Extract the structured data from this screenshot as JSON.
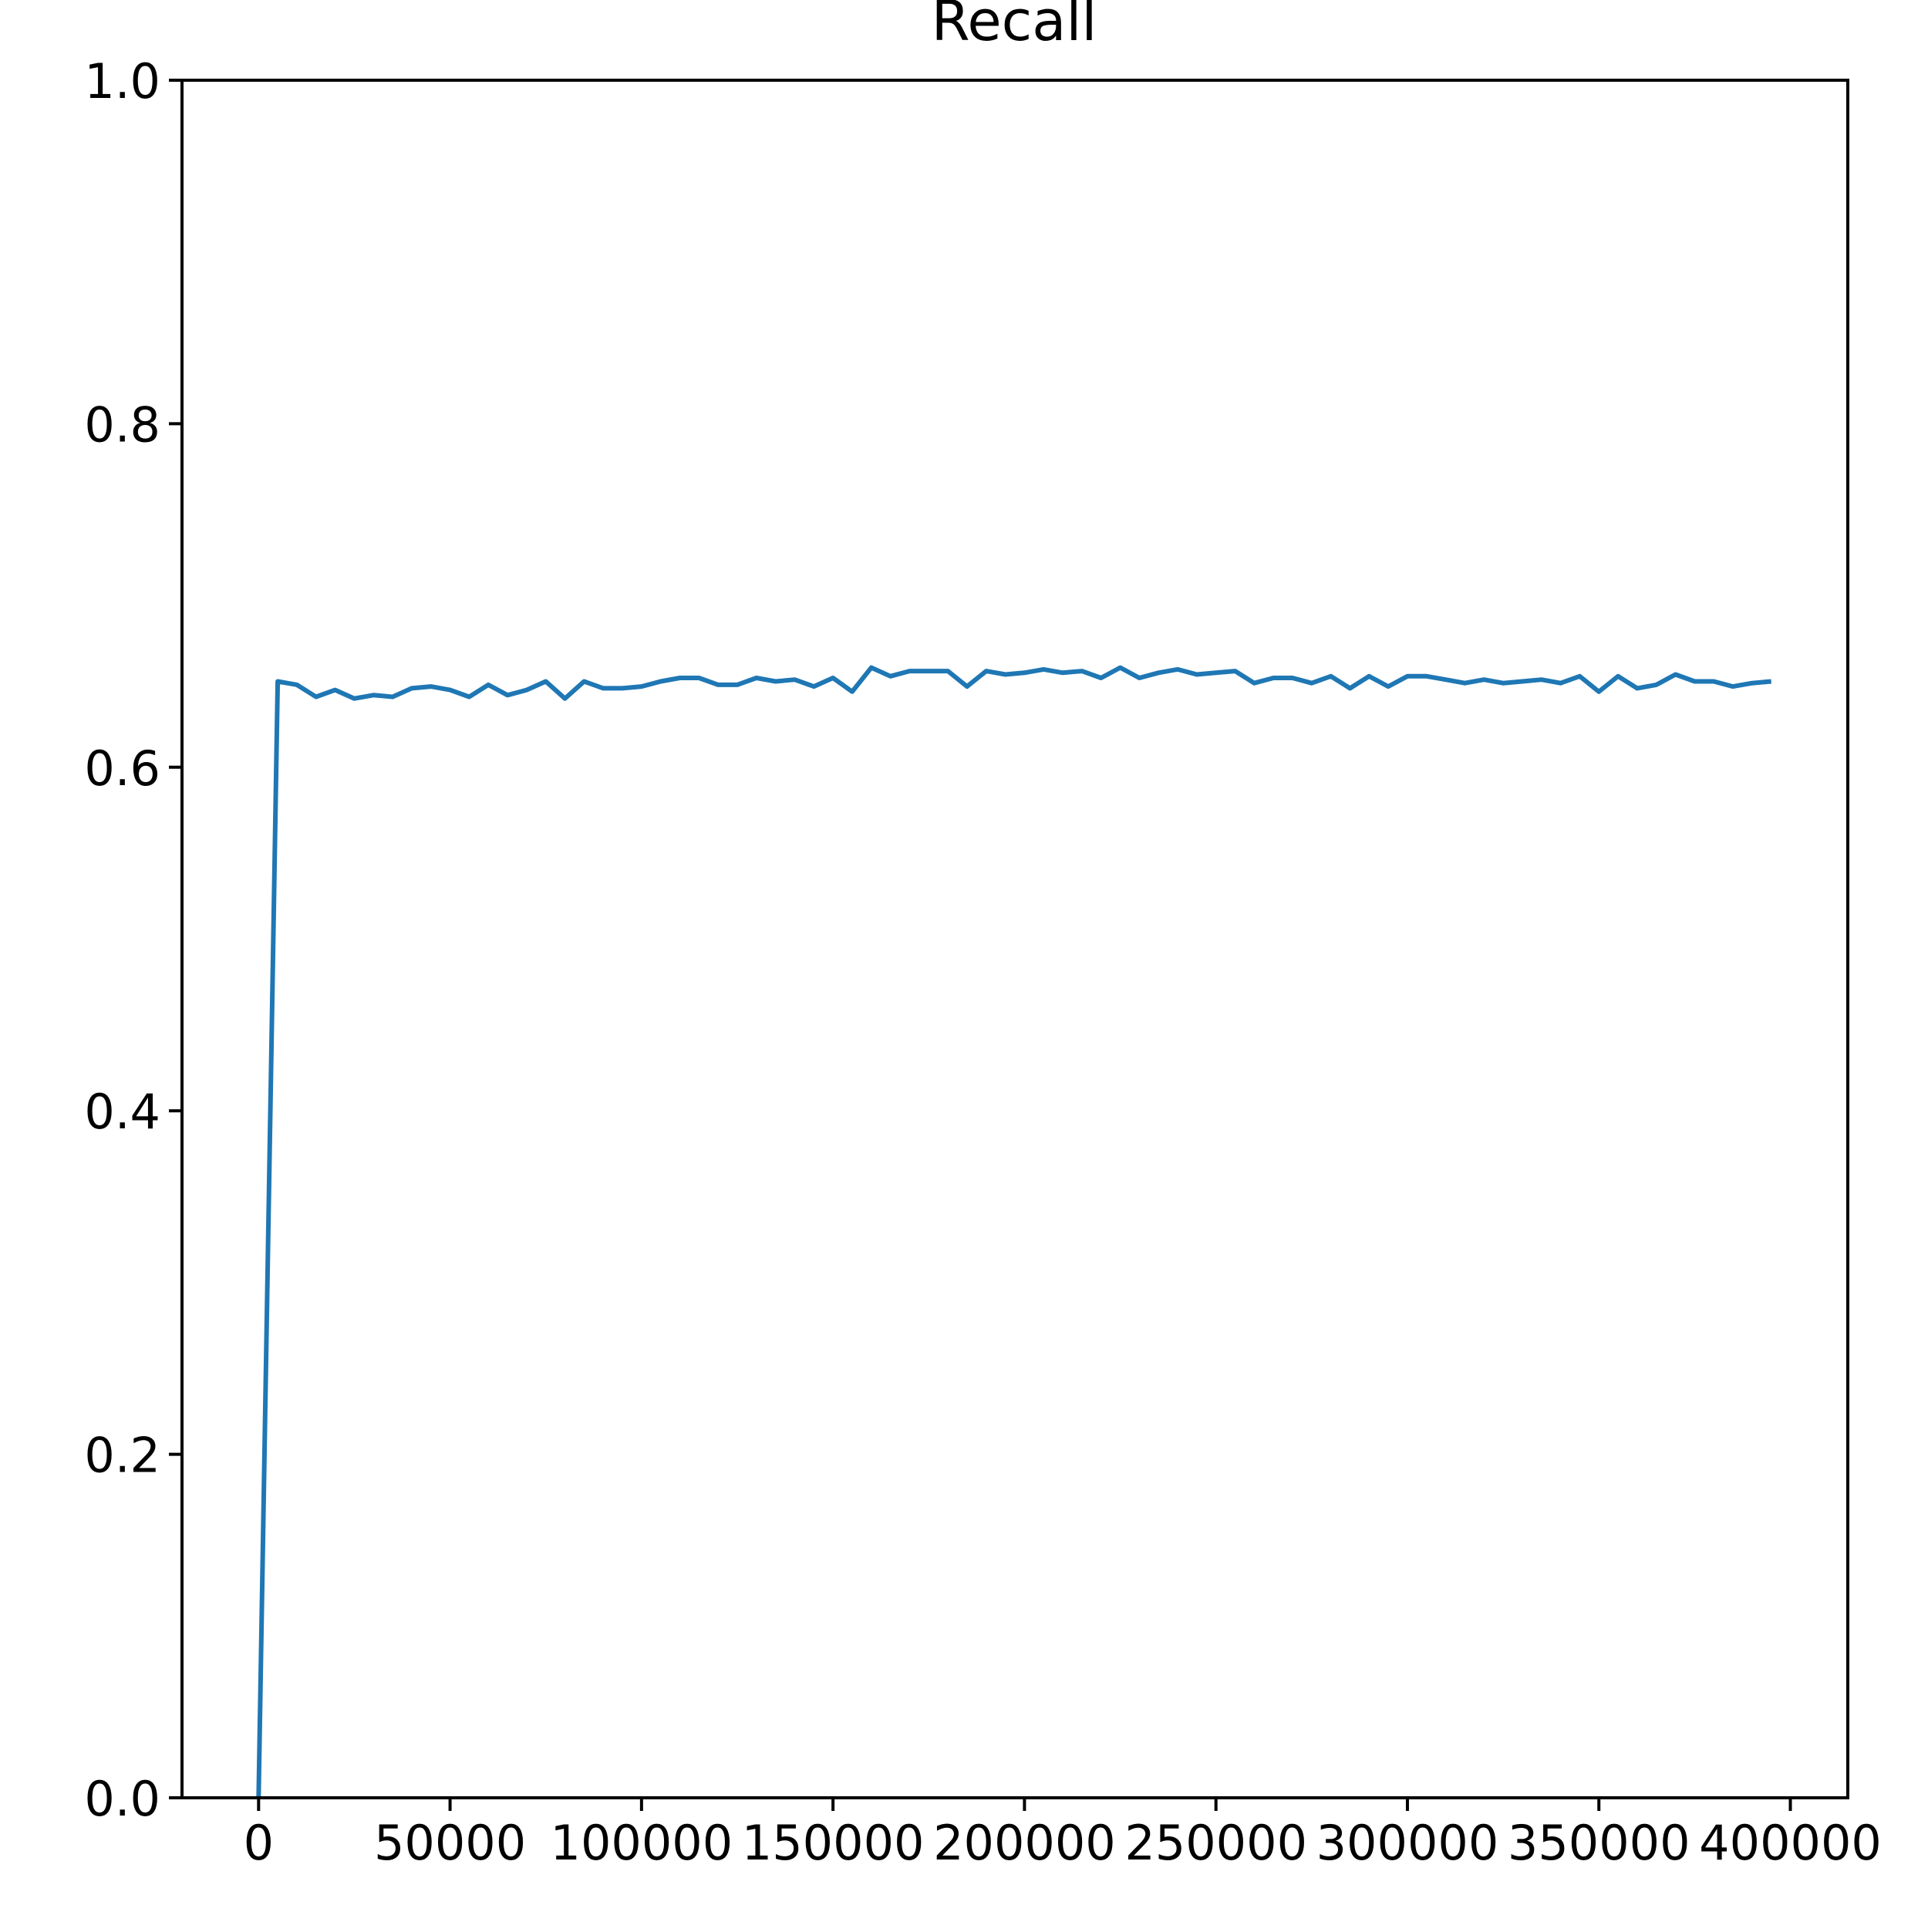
{
  "chart_data": {
    "type": "line",
    "title": "Recall",
    "xlabel": "",
    "ylabel": "",
    "xlim": [
      -20000,
      415000
    ],
    "ylim": [
      0.0,
      1.0
    ],
    "grid": false,
    "x_ticks": [
      0,
      50000,
      100000,
      150000,
      200000,
      250000,
      300000,
      350000,
      400000
    ],
    "x_tick_labels": [
      "0",
      "50000",
      "100000",
      "150000",
      "200000",
      "250000",
      "300000",
      "350000",
      "400000"
    ],
    "y_ticks": [
      0.0,
      0.2,
      0.4,
      0.6,
      0.8,
      1.0
    ],
    "y_tick_labels": [
      "0.0",
      "0.2",
      "0.4",
      "0.6",
      "0.8",
      "1.0"
    ],
    "series": [
      {
        "color": "#1f77b4",
        "x": [
          0,
          5000,
          10000,
          15000,
          20000,
          25000,
          30000,
          35000,
          40000,
          45000,
          50000,
          55000,
          60000,
          65000,
          70000,
          75000,
          80000,
          85000,
          90000,
          95000,
          100000,
          105000,
          110000,
          115000,
          120000,
          125000,
          130000,
          135000,
          140000,
          145000,
          150000,
          155000,
          160000,
          165000,
          170000,
          175000,
          180000,
          185000,
          190000,
          195000,
          200000,
          205000,
          210000,
          215000,
          220000,
          225000,
          230000,
          235000,
          240000,
          245000,
          250000,
          255000,
          260000,
          265000,
          270000,
          275000,
          280000,
          285000,
          290000,
          295000,
          300000,
          305000,
          310000,
          315000,
          320000,
          325000,
          330000,
          335000,
          340000,
          345000,
          350000,
          355000,
          360000,
          365000,
          370000,
          375000,
          380000,
          385000,
          390000,
          395000
        ],
        "y": [
          0.0,
          0.65,
          0.648,
          0.641,
          0.645,
          0.64,
          0.642,
          0.641,
          0.646,
          0.647,
          0.645,
          0.641,
          0.648,
          0.642,
          0.645,
          0.65,
          0.64,
          0.65,
          0.646,
          0.646,
          0.647,
          0.65,
          0.652,
          0.652,
          0.648,
          0.648,
          0.652,
          0.65,
          0.651,
          0.647,
          0.652,
          0.644,
          0.658,
          0.653,
          0.656,
          0.656,
          0.656,
          0.647,
          0.656,
          0.654,
          0.655,
          0.657,
          0.655,
          0.656,
          0.652,
          0.658,
          0.652,
          0.655,
          0.657,
          0.654,
          0.655,
          0.656,
          0.649,
          0.652,
          0.652,
          0.649,
          0.653,
          0.646,
          0.653,
          0.647,
          0.653,
          0.653,
          0.651,
          0.649,
          0.651,
          0.649,
          0.65,
          0.651,
          0.649,
          0.653,
          0.644,
          0.653,
          0.646,
          0.648,
          0.654,
          0.65,
          0.65,
          0.647,
          0.649,
          0.65
        ]
      }
    ]
  }
}
